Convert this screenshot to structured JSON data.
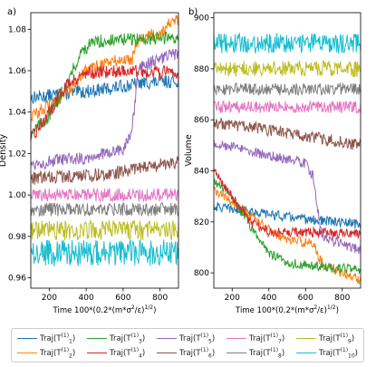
{
  "chart_data": [
    {
      "panel_label": "a)",
      "type": "line",
      "xlabel": "Time 100*(0.2*(m*σ²/ε)^1/2)",
      "ylabel": "Density",
      "xlim": [
        100,
        900
      ],
      "ylim": [
        0.955,
        1.088
      ],
      "xticks": [
        200,
        400,
        600,
        800
      ],
      "yticks": [
        0.96,
        0.98,
        1.0,
        1.02,
        1.04,
        1.06,
        1.08
      ],
      "grid": false,
      "series": [
        {
          "name": "Traj(T1^{11})",
          "color": "#1f77b4",
          "noise": 0.002,
          "x": [
            100,
            300,
            500,
            700,
            900
          ],
          "y": [
            1.047,
            1.049,
            1.051,
            1.054,
            1.055
          ]
        },
        {
          "name": "Traj(T2^{11})",
          "color": "#ff7f0e",
          "noise": 0.002,
          "x": [
            100,
            200,
            300,
            400,
            500,
            600,
            650,
            670,
            700,
            800,
            850,
            900
          ],
          "y": [
            1.038,
            1.043,
            1.05,
            1.06,
            1.064,
            1.065,
            1.066,
            1.074,
            1.076,
            1.078,
            1.083,
            1.084
          ]
        },
        {
          "name": "Traj(T3^{11})",
          "color": "#2ca02c",
          "noise": 0.002,
          "x": [
            100,
            200,
            300,
            380,
            450,
            600,
            900
          ],
          "y": [
            1.03,
            1.038,
            1.055,
            1.07,
            1.074,
            1.075,
            1.076
          ]
        },
        {
          "name": "Traj(T4^{11})",
          "color": "#d62728",
          "noise": 0.002,
          "x": [
            100,
            200,
            300,
            400,
            600,
            900
          ],
          "y": [
            1.027,
            1.04,
            1.054,
            1.059,
            1.06,
            1.059
          ]
        },
        {
          "name": "Traj(T5^{11})",
          "color": "#9467bd",
          "noise": 0.002,
          "x": [
            100,
            400,
            600,
            640,
            660,
            680,
            700,
            800,
            900
          ],
          "y": [
            1.015,
            1.018,
            1.022,
            1.028,
            1.04,
            1.058,
            1.062,
            1.066,
            1.068
          ]
        },
        {
          "name": "Traj(T6^{11})",
          "color": "#8c564b",
          "noise": 0.002,
          "x": [
            100,
            500,
            900
          ],
          "y": [
            1.008,
            1.01,
            1.016
          ]
        },
        {
          "name": "Traj(T7^{11})",
          "color": "#e377c2",
          "noise": 0.002,
          "x": [
            100,
            900
          ],
          "y": [
            1.0,
            1.0
          ]
        },
        {
          "name": "Traj(T8^{11})",
          "color": "#7f7f7f",
          "noise": 0.002,
          "x": [
            100,
            900
          ],
          "y": [
            0.993,
            0.993
          ]
        },
        {
          "name": "Traj(T9^{11})",
          "color": "#bcbd22",
          "noise": 0.003,
          "x": [
            100,
            900
          ],
          "y": [
            0.983,
            0.983
          ]
        },
        {
          "name": "Traj(T10^{11})",
          "color": "#17becf",
          "noise": 0.004,
          "x": [
            100,
            900
          ],
          "y": [
            0.972,
            0.972
          ]
        }
      ]
    },
    {
      "panel_label": "b)",
      "type": "line",
      "xlabel": "Time 100*(0.2*(m*σ²/ε)^1/2)",
      "ylabel": "Volume",
      "xlim": [
        100,
        900
      ],
      "ylim": [
        794,
        902
      ],
      "xticks": [
        200,
        400,
        600,
        800
      ],
      "yticks": [
        800,
        820,
        840,
        860,
        880,
        900
      ],
      "grid": false,
      "series": [
        {
          "name": "Traj(T1^{11})",
          "color": "#1f77b4",
          "noise": 1.2,
          "x": [
            100,
            300,
            600,
            900
          ],
          "y": [
            826,
            824,
            821,
            819
          ]
        },
        {
          "name": "Traj(T2^{11})",
          "color": "#ff7f0e",
          "noise": 1.2,
          "x": [
            100,
            200,
            300,
            400,
            500,
            600,
            650,
            670,
            700,
            800,
            900
          ],
          "y": [
            832,
            828,
            822,
            817,
            813,
            812,
            811,
            806,
            803,
            800,
            797
          ]
        },
        {
          "name": "Traj(T3^{11})",
          "color": "#2ca02c",
          "noise": 1.2,
          "x": [
            100,
            200,
            300,
            400,
            500,
            600,
            900
          ],
          "y": [
            836,
            830,
            818,
            808,
            804,
            803,
            801
          ]
        },
        {
          "name": "Traj(T4^{11})",
          "color": "#d62728",
          "noise": 1.2,
          "x": [
            100,
            200,
            300,
            400,
            600,
            900
          ],
          "y": [
            840,
            830,
            820,
            816,
            816,
            815
          ]
        },
        {
          "name": "Traj(T5^{11})",
          "color": "#9467bd",
          "noise": 1.2,
          "x": [
            100,
            400,
            600,
            640,
            660,
            680,
            700,
            800,
            900
          ],
          "y": [
            851,
            846,
            843,
            838,
            828,
            818,
            814,
            811,
            809
          ]
        },
        {
          "name": "Traj(T6^{11})",
          "color": "#8c564b",
          "noise": 1.5,
          "x": [
            100,
            500,
            900
          ],
          "y": [
            859,
            855,
            850
          ]
        },
        {
          "name": "Traj(T7^{11})",
          "color": "#e377c2",
          "noise": 1.5,
          "x": [
            100,
            900
          ],
          "y": [
            865,
            865
          ]
        },
        {
          "name": "Traj(T8^{11})",
          "color": "#7f7f7f",
          "noise": 1.5,
          "x": [
            100,
            900
          ],
          "y": [
            872,
            872
          ]
        },
        {
          "name": "Traj(T9^{11})",
          "color": "#bcbd22",
          "noise": 2.0,
          "x": [
            100,
            900
          ],
          "y": [
            880,
            880
          ]
        },
        {
          "name": "Traj(T10^{11})",
          "color": "#17becf",
          "noise": 2.5,
          "x": [
            100,
            900
          ],
          "y": [
            890,
            890
          ]
        }
      ]
    }
  ],
  "legend": {
    "placement": "bottom",
    "entries": [
      {
        "prefix": "Traj(T",
        "sub": "1",
        "sup": "(1)",
        "suffix": ")",
        "color": "#1f77b4"
      },
      {
        "prefix": "Traj(T",
        "sub": "3",
        "sup": "(1)",
        "suffix": ")",
        "color": "#2ca02c"
      },
      {
        "prefix": "Traj(T",
        "sub": "5",
        "sup": "(1)",
        "suffix": ")",
        "color": "#9467bd"
      },
      {
        "prefix": "Traj(T",
        "sub": "7",
        "sup": "(1)",
        "suffix": ")",
        "color": "#e377c2"
      },
      {
        "prefix": "Traj(T",
        "sub": "9",
        "sup": "(1)",
        "suffix": ")",
        "color": "#bcbd22"
      },
      {
        "prefix": "Traj(T",
        "sub": "2",
        "sup": "(1)",
        "suffix": ")",
        "color": "#ff7f0e"
      },
      {
        "prefix": "Traj(T",
        "sub": "4",
        "sup": "(1)",
        "suffix": ")",
        "color": "#d62728"
      },
      {
        "prefix": "Traj(T",
        "sub": "6",
        "sup": "(1)",
        "suffix": ")",
        "color": "#8c564b"
      },
      {
        "prefix": "Traj(T",
        "sub": "8",
        "sup": "(1)",
        "suffix": ")",
        "color": "#7f7f7f"
      },
      {
        "prefix": "Traj(T",
        "sub": "10",
        "sup": "(1)",
        "suffix": ")",
        "color": "#17becf"
      }
    ]
  }
}
